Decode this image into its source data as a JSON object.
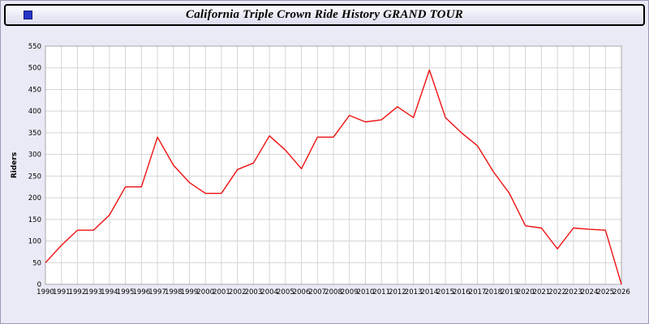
{
  "window": {
    "title": "California Triple Crown Ride History GRAND TOUR",
    "title_icon": "blue-square-icon"
  },
  "chart_data": {
    "type": "line",
    "title": "California Triple Crown Ride History GRAND TOUR",
    "xlabel": "",
    "ylabel": "Riders",
    "ylim": [
      0,
      550
    ],
    "ytick_step": 50,
    "grid": true,
    "legend_position": "none",
    "plot_bg": "#ffffff",
    "grid_color": "#d4d4d4",
    "axis_color": "#a8a8a8",
    "line_color": "#ee1111",
    "x": [
      1990,
      1991,
      1992,
      1993,
      1994,
      1995,
      1996,
      1997,
      1998,
      1999,
      2000,
      2001,
      2002,
      2003,
      2004,
      2005,
      2006,
      2007,
      2008,
      2009,
      2010,
      2011,
      2012,
      2013,
      2014,
      2015,
      2016,
      2017,
      2018,
      2019,
      2020,
      2021,
      2022,
      2023,
      2024,
      2025,
      2026
    ],
    "series": [
      {
        "name": "Riders",
        "color": "#ee1111",
        "values": [
          50,
          90,
          125,
          125,
          160,
          225,
          225,
          340,
          275,
          235,
          210,
          210,
          265,
          280,
          343,
          310,
          267,
          340,
          340,
          390,
          375,
          380,
          410,
          385,
          495,
          385,
          350,
          320,
          260,
          210,
          135,
          130,
          82,
          130,
          127,
          125,
          0
        ]
      }
    ]
  }
}
